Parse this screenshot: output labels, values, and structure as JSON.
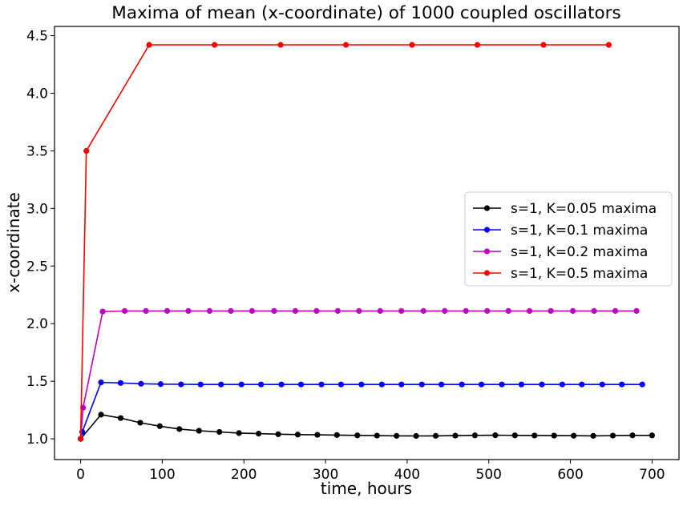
{
  "chart_data": {
    "type": "line",
    "title": "Maxima of mean (x-coordinate) of 1000 coupled oscillators",
    "xlabel": "time, hours",
    "ylabel": "x-coordinate",
    "xlim": [
      -32,
      733
    ],
    "ylim": [
      0.82,
      4.58
    ],
    "xticks": [
      0,
      100,
      200,
      300,
      400,
      500,
      600,
      700
    ],
    "xtick_labels": [
      "0",
      "100",
      "200",
      "300",
      "400",
      "500",
      "600",
      "700"
    ],
    "yticks": [
      1.0,
      1.5,
      2.0,
      2.5,
      3.0,
      3.5,
      4.0,
      4.5
    ],
    "ytick_labels": [
      "1.0",
      "1.5",
      "2.0",
      "2.5",
      "3.0",
      "3.5",
      "4.0",
      "4.5"
    ],
    "grid": false,
    "legend": "center-right",
    "series": [
      {
        "name": "s=1, K=0.05 maxima",
        "color": "#000000",
        "x": [
          0,
          25,
          49,
          73,
          97,
          121,
          145,
          170,
          194,
          218,
          242,
          266,
          290,
          314,
          339,
          363,
          387,
          411,
          435,
          459,
          483,
          508,
          532,
          556,
          580,
          604,
          628,
          652,
          676,
          700
        ],
        "y": [
          1.0,
          1.21,
          1.18,
          1.14,
          1.11,
          1.085,
          1.07,
          1.06,
          1.05,
          1.045,
          1.04,
          1.037,
          1.035,
          1.033,
          1.03,
          1.028,
          1.026,
          1.025,
          1.026,
          1.028,
          1.03,
          1.031,
          1.03,
          1.029,
          1.028,
          1.027,
          1.026,
          1.028,
          1.03,
          1.03
        ]
      },
      {
        "name": "s=1, K=0.1 maxima",
        "color": "#0000ff",
        "x": [
          0,
          2,
          25,
          49,
          74,
          98,
          123,
          147,
          172,
          197,
          221,
          246,
          270,
          295,
          319,
          344,
          369,
          393,
          418,
          442,
          467,
          491,
          516,
          540,
          565,
          590,
          614,
          639,
          663,
          688
        ],
        "y": [
          1.0,
          1.06,
          1.49,
          1.485,
          1.478,
          1.475,
          1.473,
          1.472,
          1.472,
          1.472,
          1.472,
          1.472,
          1.472,
          1.472,
          1.472,
          1.472,
          1.472,
          1.472,
          1.472,
          1.472,
          1.472,
          1.472,
          1.472,
          1.472,
          1.472,
          1.472,
          1.472,
          1.472,
          1.472,
          1.472
        ]
      },
      {
        "name": "s=1, K=0.2 maxima",
        "color": "#bf00bf",
        "x": [
          0,
          3,
          27,
          54,
          80,
          106,
          132,
          158,
          184,
          210,
          237,
          263,
          289,
          315,
          341,
          367,
          393,
          420,
          446,
          472,
          498,
          524,
          550,
          576,
          603,
          629,
          655,
          681
        ],
        "y": [
          1.0,
          1.27,
          2.105,
          2.11,
          2.11,
          2.11,
          2.11,
          2.11,
          2.11,
          2.11,
          2.11,
          2.11,
          2.11,
          2.11,
          2.11,
          2.11,
          2.11,
          2.11,
          2.11,
          2.11,
          2.11,
          2.11,
          2.11,
          2.11,
          2.11,
          2.11,
          2.11,
          2.11
        ]
      },
      {
        "name": "s=1, K=0.5 maxima",
        "color": "#ff0000",
        "x": [
          0,
          7,
          84,
          164,
          245,
          325,
          406,
          486,
          567,
          647
        ],
        "y": [
          1.0,
          3.5,
          4.42,
          4.42,
          4.42,
          4.42,
          4.42,
          4.42,
          4.42,
          4.42
        ]
      }
    ]
  }
}
